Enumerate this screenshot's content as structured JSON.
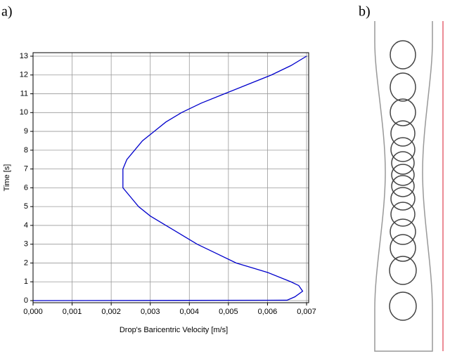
{
  "panel_labels": [
    "a)",
    "b)"
  ],
  "chart_data": {
    "type": "line",
    "xlabel": "Drop's Baricentric Velocity [m/s]",
    "ylabel": "Time [s]",
    "x": [
      0,
      0.0065,
      0.0067,
      0.0069,
      0.0068,
      0.0066,
      0.006,
      0.0052,
      0.0047,
      0.0042,
      0.0038,
      0.0034,
      0.003,
      0.0027,
      0.0025,
      0.0023,
      0.0023,
      0.0023,
      0.0024,
      0.0026,
      0.0028,
      0.0031,
      0.0034,
      0.0038,
      0.0043,
      0.0049,
      0.0055,
      0.0061,
      0.0066,
      0.007
    ],
    "series": [
      {
        "color": "#0000cc",
        "values": [
          0,
          0.02,
          0.2,
          0.5,
          0.8,
          1,
          1.5,
          2,
          2.5,
          3,
          3.5,
          4,
          4.5,
          5,
          5.5,
          6,
          6.5,
          7,
          7.5,
          8,
          8.5,
          9,
          9.5,
          10,
          10.5,
          11,
          11.5,
          12,
          12.5,
          13
        ]
      }
    ],
    "xlim": [
      0,
      0.007
    ],
    "ylim": [
      0,
      13
    ],
    "xticks": [
      {
        "value": 0,
        "label": "0,000"
      },
      {
        "value": 0.001,
        "label": "0,001"
      },
      {
        "value": 0.002,
        "label": "0,002"
      },
      {
        "value": 0.003,
        "label": "0,003"
      },
      {
        "value": 0.004,
        "label": "0,004"
      },
      {
        "value": 0.005,
        "label": "0,005"
      },
      {
        "value": 0.006,
        "label": "0,006"
      },
      {
        "value": 0.007,
        "label": "0,007"
      }
    ],
    "yticks": [
      0,
      1,
      2,
      3,
      4,
      5,
      6,
      7,
      8,
      9,
      10,
      11,
      12,
      13
    ],
    "grid": true
  }
}
